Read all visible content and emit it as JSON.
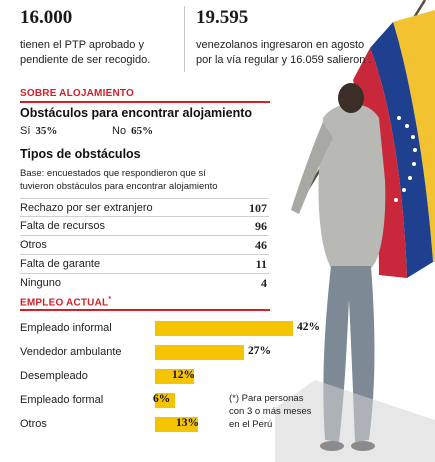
{
  "stats": [
    {
      "value": "16.000",
      "text_line1": "tienen el PTP aprobado y",
      "text_line2": "pendiente de ser recogido."
    },
    {
      "value": "19.595",
      "text_line1": "venezolanos ingresaron en agosto",
      "text_line2": "por la vía regular y 16.059 salieron ."
    }
  ],
  "housing": {
    "section_title": "SOBRE ALOJAMIENTO",
    "obstacles_title": "Obstáculos para encontrar alojamiento",
    "yes_label": "Sí",
    "yes_value": "35%",
    "no_label": "No",
    "no_value": "65%",
    "types_title": "Tipos de obstáculos",
    "base_note_line1": "Base: encuestados que respondieron que sí",
    "base_note_line2": "tuvieron obstáculos para encontrar alojamiento",
    "rows": [
      {
        "label": "Rechazo por ser extranjero",
        "value": "107"
      },
      {
        "label": "Falta de recursos",
        "value": "96"
      },
      {
        "label": "Otros",
        "value": "46"
      },
      {
        "label": "Falta de garante",
        "value": "11"
      },
      {
        "label": "Ninguno",
        "value": "4"
      }
    ]
  },
  "employment": {
    "section_title": "EMPLEO ACTUAL",
    "section_title_mark": "*",
    "rows": [
      {
        "label": "Empleado informal",
        "value": 42,
        "value_text": "42%"
      },
      {
        "label": "Vendedor ambulante",
        "value": 27,
        "value_text": "27%"
      },
      {
        "label": "Desempleado",
        "value": 12,
        "value_text": "12%"
      },
      {
        "label": "Empleado formal",
        "value": 6,
        "value_text": "6%"
      },
      {
        "label": "Otros",
        "value": 13,
        "value_text": "13%"
      }
    ],
    "footnote_line1": "(*) Para personas",
    "footnote_line2": "con 3 o más meses",
    "footnote_line3": "en el Perú"
  },
  "photo": {
    "subject": "person-holding-venezuelan-flag",
    "flag_colors": [
      "#f2c230",
      "#1f3f8f",
      "#c8283a"
    ]
  }
}
